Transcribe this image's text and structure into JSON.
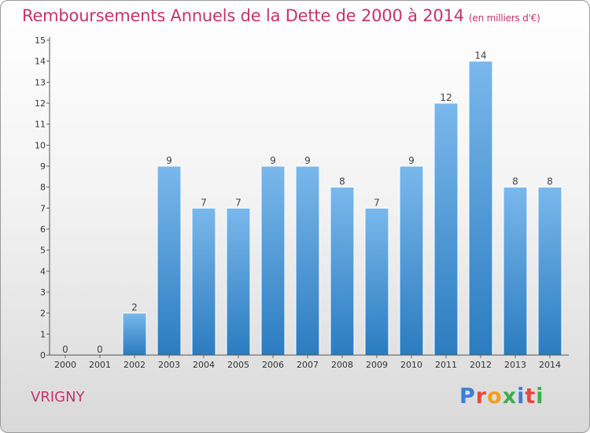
{
  "title": "Remboursements Annuels de la Dette de 2000 à 2014",
  "unit": "(en milliers d'€)",
  "commune": "VRIGNY",
  "logo": {
    "text": "Proxiti",
    "letter_colors": [
      "#3a7fd5",
      "#e8473f",
      "#f0a020",
      "#3cae49",
      "#3a7fd5",
      "#e8473f",
      "#3cae49"
    ]
  },
  "colors": {
    "bar_light": "#7ab8ec",
    "bar_dark": "#2b7cc0",
    "title": "#c4336f"
  },
  "chart_data": {
    "type": "bar",
    "categories": [
      "2000",
      "2001",
      "2002",
      "2003",
      "2004",
      "2005",
      "2006",
      "2007",
      "2008",
      "2009",
      "2010",
      "2011",
      "2012",
      "2013",
      "2014"
    ],
    "values": [
      0,
      0,
      2,
      9,
      7,
      7,
      9,
      9,
      8,
      7,
      9,
      12,
      14,
      8,
      8
    ],
    "data_labels": [
      "0",
      "0",
      "2",
      "9",
      "7",
      "7",
      "9",
      "9",
      "8",
      "7",
      "9",
      "12",
      "14",
      "8",
      "8"
    ],
    "yticks": [
      "0",
      "1",
      "2",
      "3",
      "4",
      "5",
      "6",
      "7",
      "8",
      "9",
      "10",
      "11",
      "12",
      "13",
      "14",
      "15"
    ],
    "ylim": [
      0,
      15
    ],
    "grid": false,
    "legend": "none"
  }
}
